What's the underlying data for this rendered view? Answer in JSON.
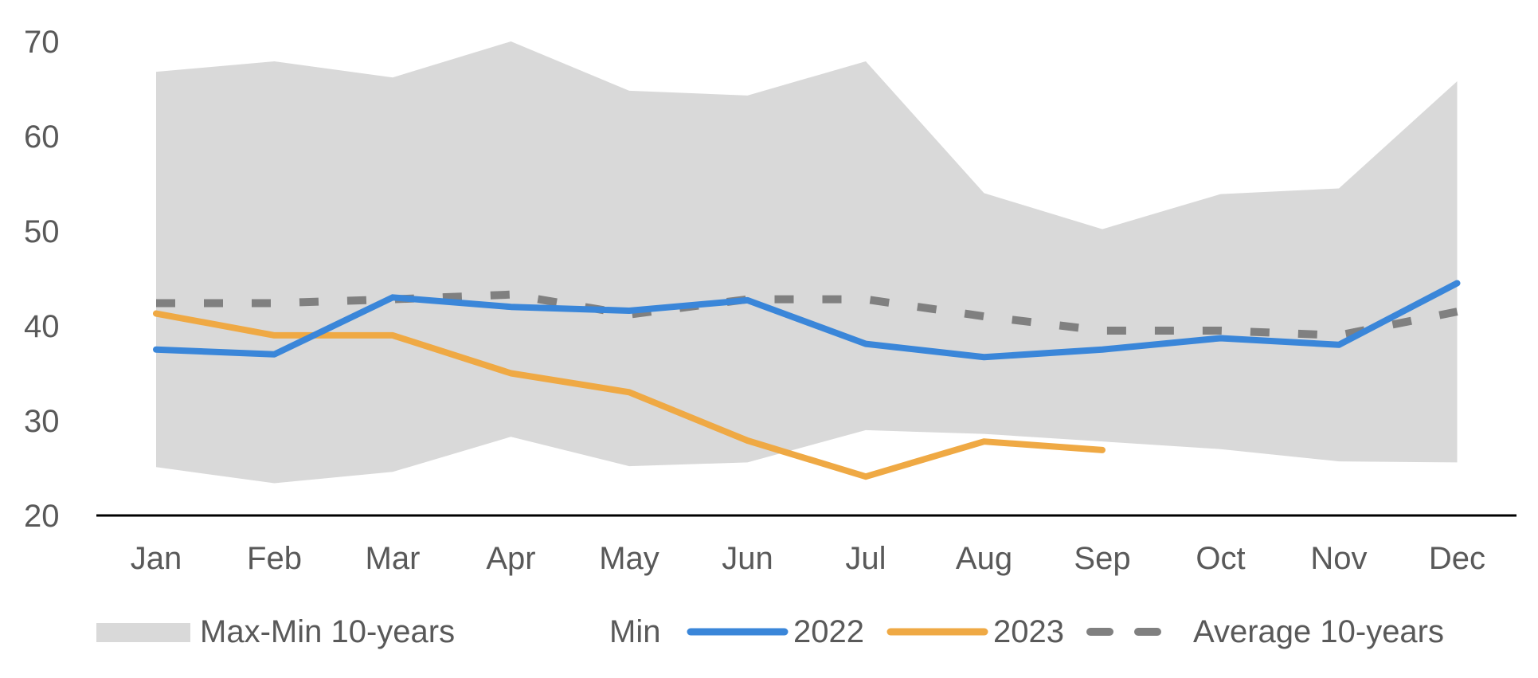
{
  "chart_data": {
    "type": "line",
    "categories": [
      "Jan",
      "Feb",
      "Mar",
      "Apr",
      "May",
      "Jun",
      "Jul",
      "Aug",
      "Sep",
      "Oct",
      "Nov",
      "Dec"
    ],
    "ylim": [
      20,
      70
    ],
    "yticks": [
      20,
      30,
      40,
      50,
      60,
      70
    ],
    "band": {
      "name": "Max-Min 10-years",
      "max": [
        66.8,
        67.9,
        66.2,
        70.0,
        64.8,
        64.3,
        67.9,
        54.0,
        50.2,
        53.9,
        54.5,
        65.8
      ],
      "min": [
        25.1,
        23.4,
        24.6,
        28.3,
        25.2,
        25.6,
        29.0,
        28.6,
        27.8,
        27.0,
        25.7,
        25.6
      ],
      "color": "#d9d9d9"
    },
    "min_legend_label": "Min",
    "series": [
      {
        "name": "2022",
        "values": [
          37.5,
          37.0,
          43.0,
          42.0,
          41.6,
          42.7,
          38.1,
          36.7,
          37.5,
          38.7,
          38.0,
          44.5
        ],
        "color": "#3a86d9",
        "dashed": false
      },
      {
        "name": "2023",
        "values": [
          41.3,
          39.0,
          39.0,
          35.0,
          33.0,
          27.9,
          24.1,
          27.8,
          26.9,
          null,
          null,
          null
        ],
        "color": "#efa944",
        "dashed": false
      },
      {
        "name": "Average 10-years",
        "values": [
          42.4,
          42.4,
          42.8,
          43.3,
          41.2,
          42.8,
          42.8,
          41.0,
          39.5,
          39.5,
          39.0,
          41.5
        ],
        "color": "#808080",
        "dashed": true
      }
    ],
    "grid": false,
    "legend_position": "bottom"
  }
}
